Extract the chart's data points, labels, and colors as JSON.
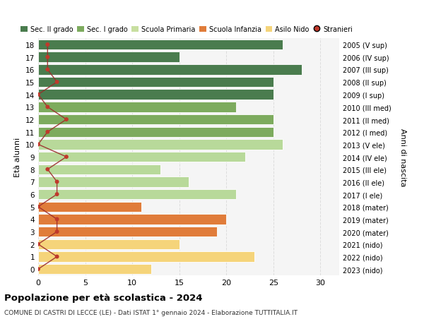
{
  "ages": [
    18,
    17,
    16,
    15,
    14,
    13,
    12,
    11,
    10,
    9,
    8,
    7,
    6,
    5,
    4,
    3,
    2,
    1,
    0
  ],
  "right_labels": [
    "2005 (V sup)",
    "2006 (IV sup)",
    "2007 (III sup)",
    "2008 (II sup)",
    "2009 (I sup)",
    "2010 (III med)",
    "2011 (II med)",
    "2012 (I med)",
    "2013 (V ele)",
    "2014 (IV ele)",
    "2015 (III ele)",
    "2016 (II ele)",
    "2017 (I ele)",
    "2018 (mater)",
    "2019 (mater)",
    "2020 (mater)",
    "2021 (nido)",
    "2022 (nido)",
    "2023 (nido)"
  ],
  "bar_values": [
    26,
    15,
    28,
    25,
    25,
    21,
    25,
    25,
    26,
    22,
    13,
    16,
    21,
    11,
    20,
    19,
    15,
    23,
    12
  ],
  "bar_colors": [
    "#4a7c4e",
    "#4a7c4e",
    "#4a7c4e",
    "#4a7c4e",
    "#4a7c4e",
    "#7dab5e",
    "#7dab5e",
    "#7dab5e",
    "#b8d99a",
    "#b8d99a",
    "#b8d99a",
    "#b8d99a",
    "#b8d99a",
    "#e07c3a",
    "#e07c3a",
    "#e07c3a",
    "#f5d47a",
    "#f5d47a",
    "#f5d47a"
  ],
  "stranieri_values": [
    1,
    1,
    1,
    2,
    0,
    1,
    3,
    1,
    0,
    3,
    1,
    2,
    2,
    0,
    2,
    2,
    0,
    2,
    0
  ],
  "legend_labels": [
    "Sec. II grado",
    "Sec. I grado",
    "Scuola Primaria",
    "Scuola Infanzia",
    "Asilo Nido",
    "Stranieri"
  ],
  "legend_colors": [
    "#4a7c4e",
    "#7dab5e",
    "#c8dfa0",
    "#e07c3a",
    "#f5d47a",
    "#c0392b"
  ],
  "ylabel": "Età alunni",
  "right_ylabel": "Anni di nascita",
  "title": "Popolazione per età scolastica - 2024",
  "subtitle": "COMUNE DI CASTRI DI LECCE (LE) - Dati ISTAT 1° gennaio 2024 - Elaborazione TUTTITALIA.IT",
  "xlim": [
    0,
    32
  ],
  "background_color": "#ffffff",
  "grid_color": "#dddddd",
  "bar_edge_color": "#ffffff",
  "bar_height": 0.82
}
